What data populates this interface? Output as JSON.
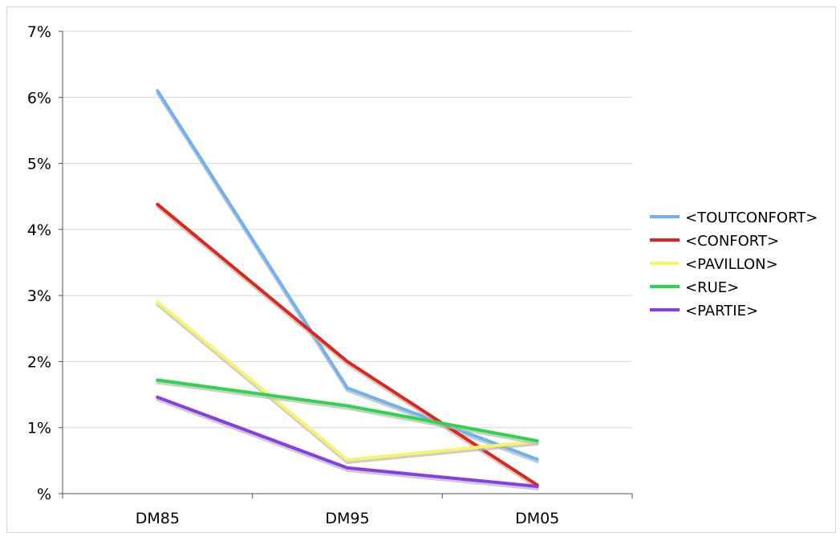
{
  "chart_data": {
    "type": "line",
    "categories": [
      "DM85",
      "DM95",
      "DM05"
    ],
    "yticks": [
      "%",
      "1%",
      "2%",
      "3%",
      "4%",
      "5%",
      "6%",
      "7%"
    ],
    "ylim": [
      0,
      7
    ],
    "grid": true,
    "legend_position": "right",
    "series": [
      {
        "name": "<TOUTCONFORT>",
        "color": "#6fb2f0",
        "values": [
          6.1,
          1.6,
          0.52
        ]
      },
      {
        "name": "<CONFORT>",
        "color": "#e0261b",
        "values": [
          4.38,
          2.0,
          0.13
        ]
      },
      {
        "name": "<PAVILLON>",
        "color": "#f7f36b",
        "values": [
          2.9,
          0.51,
          0.79
        ]
      },
      {
        "name": "<RUE>",
        "color": "#2bd64a",
        "values": [
          1.72,
          1.33,
          0.8
        ]
      },
      {
        "name": "<PARTIE>",
        "color": "#8a3de6",
        "values": [
          1.46,
          0.39,
          0.11
        ]
      }
    ]
  }
}
